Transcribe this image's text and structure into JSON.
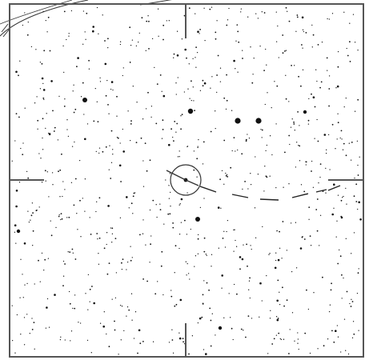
{
  "view": {
    "frame_color": "#555555",
    "star_color": "#111111",
    "reticle_color": "#333333",
    "trail_color": "#222222"
  }
}
